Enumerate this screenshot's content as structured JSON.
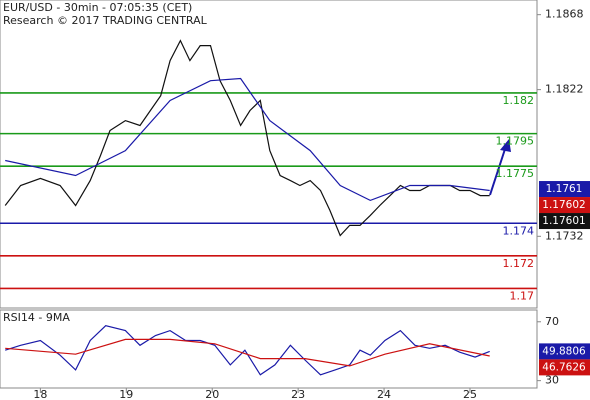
{
  "chart_data": [
    {
      "type": "line",
      "title": "EUR/USD - 30min - 07:05:35 (CET)",
      "subtitle": "Research © 2017 TRADING CENTRAL",
      "xlim": [
        -0.47,
        5.78
      ],
      "xticks": [
        {
          "value": 0,
          "label": "18"
        },
        {
          "value": 1,
          "label": "19"
        },
        {
          "value": 2,
          "label": "20"
        },
        {
          "value": 3,
          "label": "23"
        },
        {
          "value": 4,
          "label": "24"
        },
        {
          "value": 5,
          "label": "25"
        }
      ],
      "ylim": [
        1.1688,
        1.1877
      ],
      "yticks": [
        1.1868,
        1.1822,
        1.1732
      ],
      "series": [
        {
          "color": "#111111",
          "x": [
            -0.41,
            -0.23,
            0,
            0.23,
            0.41,
            0.58,
            0.7,
            0.81,
            0.99,
            1.16,
            1.28,
            1.4,
            1.51,
            1.63,
            1.74,
            1.86,
            1.98,
            2.09,
            2.21,
            2.33,
            2.44,
            2.56,
            2.67,
            2.79,
            2.91,
            3.02,
            3.14,
            3.26,
            3.37,
            3.49,
            3.6,
            3.72,
            3.84,
            3.95,
            4.07,
            4.19,
            4.3,
            4.42,
            4.53,
            4.65,
            4.77,
            4.88,
            5,
            5.12,
            5.23
          ],
          "values": [
            1.17509,
            1.17632,
            1.17675,
            1.17632,
            1.17509,
            1.17662,
            1.17816,
            1.17969,
            1.1803,
            1.18,
            1.18092,
            1.18183,
            1.18398,
            1.18521,
            1.18398,
            1.1849,
            1.1849,
            1.18275,
            1.18153,
            1.18,
            1.18092,
            1.18153,
            1.17846,
            1.17693,
            1.17662,
            1.17632,
            1.17662,
            1.17601,
            1.17479,
            1.17325,
            1.17387,
            1.17387,
            1.17448,
            1.17509,
            1.1757,
            1.17632,
            1.17601,
            1.17601,
            1.17632,
            1.17632,
            1.17632,
            1.17601,
            1.17601,
            1.1757,
            1.1757
          ]
        },
        {
          "color": "#1a1aa8",
          "x": [
            -0.41,
            0.41,
            0.99,
            1.51,
            1.98,
            2.33,
            2.67,
            3.14,
            3.49,
            3.84,
            4.3,
            4.77,
            5.23
          ],
          "values": [
            1.17785,
            1.17693,
            1.17846,
            1.18153,
            1.18275,
            1.18288,
            1.1803,
            1.17846,
            1.17632,
            1.1754,
            1.17632,
            1.17632,
            1.17601
          ]
        }
      ],
      "levels": [
        {
          "value": 1.182,
          "color": "#1a9a1a"
        },
        {
          "value": 1.1795,
          "color": "#1a9a1a"
        },
        {
          "value": 1.1775,
          "color": "#1a9a1a"
        },
        {
          "value": 1.174,
          "color": "#1a1aa8"
        },
        {
          "value": 1.172,
          "color": "#cc1111"
        },
        {
          "value": 1.17,
          "color": "#cc1111"
        }
      ],
      "tags": [
        {
          "value": 1.1761,
          "color": "#1a1aa8"
        },
        {
          "value": 1.17602,
          "color": "#cc1111"
        },
        {
          "value": 1.17601,
          "color": "#111111"
        }
      ]
    },
    {
      "type": "line",
      "title": "RSI14 - 9MA",
      "ylim": [
        25,
        78
      ],
      "yticks": [
        70,
        30
      ],
      "series": [
        {
          "color": "#1a1aa8",
          "x": [
            -0.41,
            -0.23,
            0,
            0.23,
            0.41,
            0.58,
            0.76,
            0.99,
            1.16,
            1.34,
            1.51,
            1.69,
            1.86,
            2.03,
            2.21,
            2.38,
            2.56,
            2.73,
            2.91,
            3.08,
            3.26,
            3.43,
            3.6,
            3.72,
            3.84,
            4.01,
            4.19,
            4.36,
            4.53,
            4.71,
            4.88,
            5.06,
            5.23
          ],
          "values": [
            50.7,
            54,
            57.3,
            47.3,
            37.3,
            57.3,
            67.3,
            64,
            54,
            60.7,
            64,
            57.3,
            57.3,
            54,
            40.7,
            50.7,
            34,
            40.7,
            54,
            44,
            34,
            37.3,
            40.7,
            50.7,
            47.3,
            57.3,
            64,
            54,
            52,
            54,
            49.3,
            46,
            49.8806
          ]
        },
        {
          "color": "#cc1111",
          "x": [
            -0.41,
            0.41,
            0.99,
            1.51,
            2.03,
            2.56,
            3.08,
            3.6,
            4.01,
            4.53,
            5.23
          ],
          "values": [
            52,
            48,
            58,
            58,
            55,
            45,
            45,
            40,
            48,
            55,
            46.7626
          ]
        }
      ],
      "tags": [
        {
          "value": 49.8806,
          "color": "#1a1aa8"
        },
        {
          "value": 46.7626,
          "color": "#cc1111"
        }
      ]
    }
  ]
}
